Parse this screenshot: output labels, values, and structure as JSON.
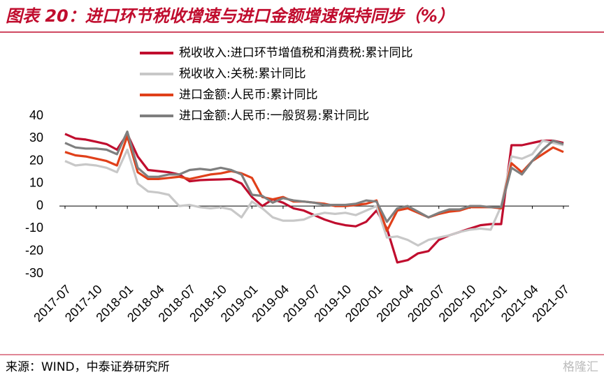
{
  "chart_data": {
    "type": "line",
    "title": "图表 20：进口环节税收增速与进口金额增速保持同步（%）",
    "source": "来源：WIND，中泰证券研究所",
    "watermark": "格隆汇",
    "categories": [
      "2017-07",
      null,
      null,
      "2017-10",
      null,
      null,
      "2018-01",
      null,
      null,
      "2018-04",
      null,
      null,
      "2018-07",
      null,
      null,
      "2018-10",
      null,
      null,
      "2019-01",
      null,
      null,
      "2019-04",
      null,
      null,
      "2019-07",
      null,
      null,
      "2019-10",
      null,
      null,
      "2020-01",
      null,
      null,
      "2020-04",
      null,
      null,
      "2020-07",
      null,
      null,
      "2020-10",
      null,
      null,
      "2021-01",
      null,
      null,
      "2021-04",
      null,
      null,
      "2021-07"
    ],
    "series": [
      {
        "name": "税收收入:进口环节增值税和消费税:累计同比",
        "color": "#c00d2e",
        "values": [
          32,
          30,
          29.5,
          28.5,
          27.5,
          25,
          32,
          22,
          16,
          15.5,
          15,
          14,
          11,
          11.5,
          11.7,
          11.8,
          12,
          10,
          4,
          0,
          3,
          1.5,
          -1,
          -2,
          -4,
          -6,
          -7.5,
          -8.5,
          -9,
          -7,
          -2,
          -10,
          -25,
          -24,
          -21,
          -20,
          -15,
          -13,
          -11.5,
          -10,
          -8.5,
          -8,
          -8,
          27,
          27,
          28,
          29,
          29,
          28
        ]
      },
      {
        "name": "税收收入:关税:累计同比",
        "color": "#c8c8c8",
        "values": [
          20,
          18,
          18.5,
          18,
          17,
          15,
          25,
          10,
          6.5,
          6,
          5,
          0,
          0.5,
          -0.5,
          -1,
          -0.5,
          -1.5,
          -5,
          2,
          -1,
          -5,
          -6.5,
          -6.5,
          -6,
          -4,
          -3,
          -3.5,
          -3,
          -4,
          -2,
          0,
          -14,
          -13.5,
          -15,
          -17.5,
          -15,
          -14,
          -13,
          -11.5,
          -10.5,
          -10,
          -10.5,
          0,
          22,
          21,
          23,
          29,
          28,
          27
        ]
      },
      {
        "name": "进口金额:人民币:累计同比",
        "color": "#e0401a",
        "values": [
          24,
          22.5,
          22,
          21,
          20,
          18,
          31,
          15,
          12,
          12,
          12.5,
          13,
          12,
          13,
          14,
          14.5,
          15.5,
          14.5,
          12.5,
          4,
          3,
          4,
          2,
          2,
          1.5,
          1,
          0,
          0,
          0.5,
          1,
          2.5,
          -11,
          -2,
          -1,
          -3,
          -5,
          -3.5,
          -2.5,
          -2,
          -0.5,
          -0.5,
          -0.5,
          -1,
          19,
          15,
          20,
          23,
          26,
          24
        ]
      },
      {
        "name": "进口金额:人民币:一般贸易:累计同比",
        "color": "#7f7f7f",
        "values": [
          28,
          26,
          25.5,
          25.5,
          25,
          23,
          33,
          17,
          13,
          13,
          14,
          14,
          16,
          16.5,
          16,
          17,
          16,
          14,
          5,
          4.5,
          1.5,
          3.5,
          2.5,
          2,
          1.5,
          0.5,
          0.5,
          0.5,
          1,
          2.5,
          2,
          -7,
          -1,
          0,
          -2.5,
          -5,
          -3,
          -1.5,
          -1.5,
          0,
          0,
          -0.5,
          -0.5,
          17,
          14,
          20,
          25,
          29,
          27.5
        ]
      }
    ],
    "ylim": [
      -30,
      40
    ],
    "yticks": [
      -30,
      -20,
      -10,
      0,
      10,
      20,
      30,
      40
    ],
    "grid": false
  }
}
